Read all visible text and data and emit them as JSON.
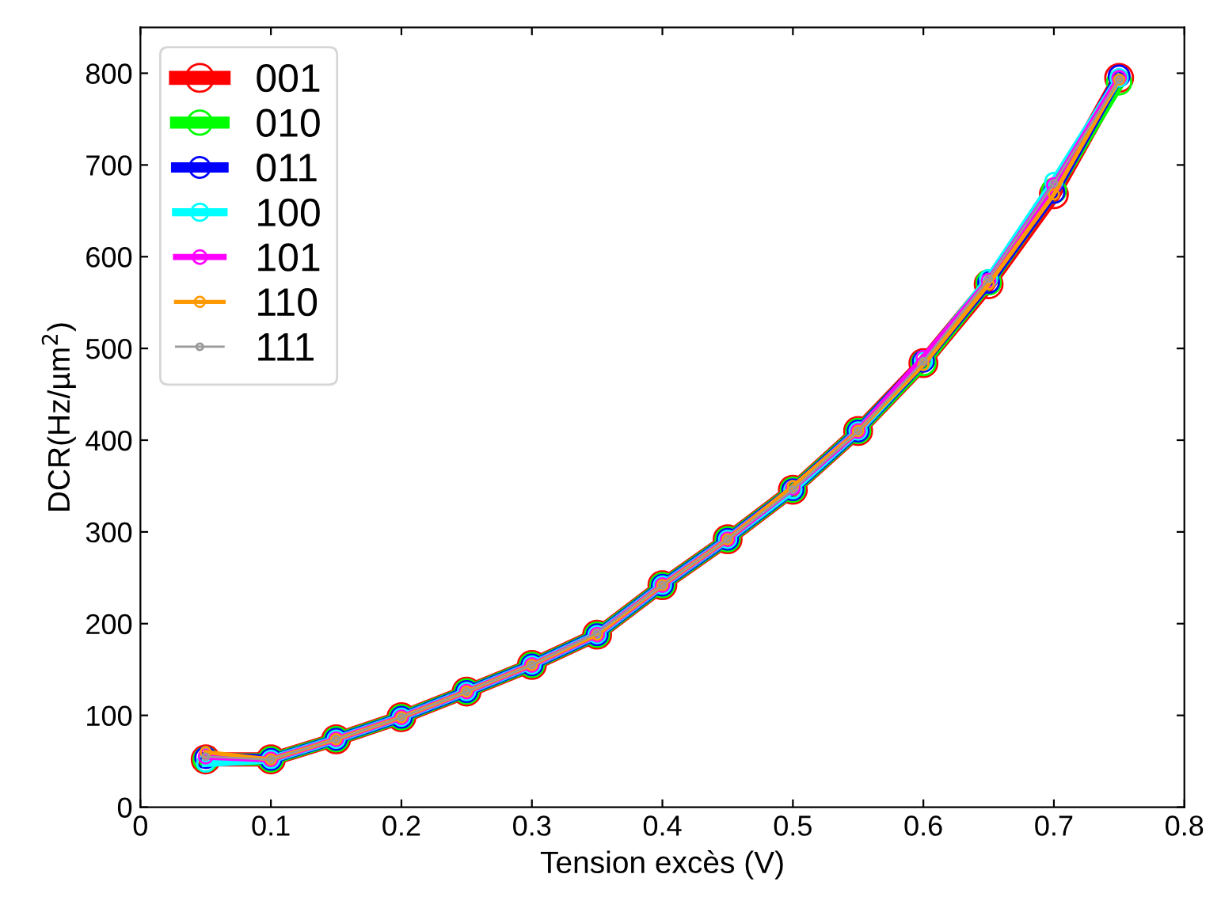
{
  "chart_data": {
    "type": "line",
    "xlabel": "Tension excès (V)",
    "ylabel": "DCR(Hz/µm$^{2}$)",
    "x": [
      0.05,
      0.1,
      0.15,
      0.2,
      0.25,
      0.3,
      0.35,
      0.4,
      0.45,
      0.5,
      0.55,
      0.6,
      0.65,
      0.7,
      0.75
    ],
    "series": [
      {
        "name": "001",
        "color": "#ff0000",
        "values": [
          52,
          52,
          74,
          98,
          126,
          155,
          188,
          242,
          292,
          346,
          410,
          484,
          570,
          668,
          795
        ]
      },
      {
        "name": "010",
        "color": "#00ff00",
        "values": [
          52,
          52,
          74,
          98,
          126,
          155,
          188,
          242,
          292,
          346,
          410,
          484,
          572,
          672,
          790
        ]
      },
      {
        "name": "011",
        "color": "#0000ff",
        "values": [
          54,
          52,
          74,
          98,
          126,
          155,
          188,
          242,
          292,
          346,
          410,
          486,
          572,
          670,
          797
        ]
      },
      {
        "name": "100",
        "color": "#00ffff",
        "values": [
          48,
          52,
          74,
          98,
          126,
          155,
          188,
          242,
          292,
          346,
          410,
          486,
          576,
          682,
          795
        ]
      },
      {
        "name": "101",
        "color": "#ff00ff",
        "values": [
          55,
          52,
          74,
          98,
          126,
          155,
          188,
          242,
          292,
          348,
          410,
          490,
          574,
          678,
          795
        ]
      },
      {
        "name": "110",
        "color": "#ff9900",
        "values": [
          60,
          52,
          74,
          98,
          126,
          155,
          188,
          242,
          292,
          350,
          410,
          482,
          570,
          668,
          793
        ]
      },
      {
        "name": "111",
        "color": "#999999",
        "values": [
          55,
          52,
          74,
          98,
          126,
          155,
          190,
          242,
          292,
          346,
          410,
          486,
          576,
          680,
          793
        ]
      }
    ],
    "xlim": [
      0,
      0.8
    ],
    "xticks": [
      0,
      0.1,
      0.2,
      0.3,
      0.4,
      0.5,
      0.6,
      0.7,
      0.8
    ],
    "ylim": [
      0,
      850
    ],
    "yticks": [
      0,
      100,
      200,
      300,
      400,
      500,
      600,
      700,
      800
    ],
    "grid": false,
    "legend": "top left",
    "marker": "circle",
    "line_style": "solid"
  }
}
